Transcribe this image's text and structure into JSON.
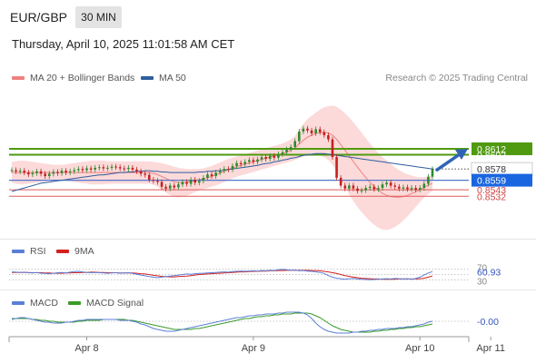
{
  "header": {
    "pair": "EUR/GBP",
    "timeframe": "30 MIN",
    "datetime": "Thursday, April 10, 2025 11:01:58 AM CET"
  },
  "legend": {
    "bollinger": "MA 20 + Bollinger Bands",
    "bollinger_color": "#f08080",
    "ma50": "MA 50",
    "ma50_color": "#2f5d9e",
    "copyright": "Research © 2025 Trading Central"
  },
  "rsi_legend": {
    "rsi": "RSI",
    "rsi_color": "#5b7fd6",
    "ma": "9MA",
    "ma_color": "#d42020"
  },
  "macd_legend": {
    "macd": "MACD",
    "macd_color": "#5b7fd6",
    "signal": "MACD Signal",
    "signal_color": "#3a9a2a"
  },
  "chart_data": {
    "type": "candlestick",
    "x_ticks": [
      "Apr 8",
      "Apr 9",
      "Apr 10",
      "Apr 11"
    ],
    "price_labels": [
      {
        "text": "0.8612",
        "value": 0.8612,
        "style": "green"
      },
      {
        "text": "0.8602",
        "value": 0.8602,
        "style": "green-partial"
      },
      {
        "text": "0.8578",
        "value": 0.8578,
        "style": "white"
      },
      {
        "text": "0.8559",
        "value": 0.8559,
        "style": "blue"
      },
      {
        "text": "0.8543",
        "value": 0.8543,
        "style": "red-partial"
      },
      {
        "text": "0.8532",
        "value": 0.8532,
        "style": "red"
      }
    ],
    "resistance_levels": [
      0.8612,
      0.8602
    ],
    "pivot_level": 0.8559,
    "support_levels": [
      0.8543,
      0.8532
    ],
    "last_price": 0.8578,
    "price_ylim": [
      0.8462,
      0.8716
    ],
    "closes": [
      0.8576,
      0.8574,
      0.8575,
      0.8572,
      0.8569,
      0.8571,
      0.8574,
      0.857,
      0.8566,
      0.857,
      0.8573,
      0.8571,
      0.8575,
      0.8572,
      0.8574,
      0.8576,
      0.8578,
      0.8576,
      0.8579,
      0.8577,
      0.858,
      0.8581,
      0.8579,
      0.858,
      0.8582,
      0.8581,
      0.8579,
      0.8578,
      0.858,
      0.8577,
      0.8574,
      0.857,
      0.8568,
      0.856,
      0.8558,
      0.8556,
      0.8548,
      0.8545,
      0.855,
      0.8547,
      0.8552,
      0.8556,
      0.8553,
      0.856,
      0.8555,
      0.8558,
      0.8563,
      0.8569,
      0.8566,
      0.8572,
      0.8575,
      0.8578,
      0.8577,
      0.8583,
      0.8588,
      0.8586,
      0.859,
      0.8593,
      0.859,
      0.8594,
      0.8598,
      0.8595,
      0.86,
      0.8597,
      0.8603,
      0.8606,
      0.8611,
      0.8615,
      0.8625,
      0.8641,
      0.8646,
      0.8643,
      0.8638,
      0.8645,
      0.864,
      0.8635,
      0.8628,
      0.8598,
      0.8563,
      0.855,
      0.8545,
      0.855,
      0.8545,
      0.8541,
      0.8542,
      0.8546,
      0.8548,
      0.8544,
      0.8546,
      0.8552,
      0.8555,
      0.855,
      0.8548,
      0.8545,
      0.8547,
      0.8544,
      0.8546,
      0.8543,
      0.8546,
      0.8553,
      0.8565,
      0.8578
    ],
    "ma50": [
      0.854,
      0.8542,
      0.8544,
      0.8546,
      0.8548,
      0.855,
      0.8552,
      0.8554,
      0.8555,
      0.8556,
      0.8557,
      0.8558,
      0.8559,
      0.856,
      0.8561,
      0.8562,
      0.8563,
      0.8564,
      0.8565,
      0.8566,
      0.8567,
      0.8568,
      0.8568,
      0.8569,
      0.857,
      0.8571,
      0.8572,
      0.8572,
      0.8573,
      0.8573,
      0.8574,
      0.8574,
      0.8575,
      0.8575,
      0.8574,
      0.8574,
      0.8573,
      0.8573,
      0.8572,
      0.8572,
      0.8572,
      0.8572,
      0.8572,
      0.8572,
      0.8572,
      0.8573,
      0.8573,
      0.8574,
      0.8574,
      0.8575,
      0.8575,
      0.8576,
      0.8577,
      0.8578,
      0.8579,
      0.858,
      0.8581,
      0.8582,
      0.8583,
      0.8584,
      0.8586,
      0.8587,
      0.8588,
      0.859,
      0.8591,
      0.8593,
      0.8594,
      0.8596,
      0.8597,
      0.8599,
      0.8601,
      0.8602,
      0.8603,
      0.8604,
      0.8604,
      0.8604,
      0.8603,
      0.8602,
      0.8601,
      0.86,
      0.8599,
      0.8598,
      0.8597,
      0.8596,
      0.8595,
      0.8594,
      0.8593,
      0.8592,
      0.8591,
      0.859,
      0.8589,
      0.8588,
      0.8587,
      0.8586,
      0.8585,
      0.8584,
      0.8583,
      0.8582,
      0.8581,
      0.858,
      0.8579,
      0.8578
    ],
    "bb_upper": [
      0.859,
      0.8591,
      0.8592,
      0.8592,
      0.8591,
      0.859,
      0.8589,
      0.8588,
      0.8587,
      0.8586,
      0.8585,
      0.8585,
      0.8585,
      0.8586,
      0.8587,
      0.8588,
      0.8589,
      0.859,
      0.8591,
      0.8592,
      0.8592,
      0.8592,
      0.8592,
      0.8591,
      0.8591,
      0.8591,
      0.8591,
      0.8591,
      0.8591,
      0.8591,
      0.8591,
      0.8591,
      0.8591,
      0.8591,
      0.859,
      0.8589,
      0.8588,
      0.8586,
      0.8584,
      0.8582,
      0.858,
      0.8579,
      0.8578,
      0.8578,
      0.8578,
      0.8578,
      0.8579,
      0.8581,
      0.8583,
      0.8586,
      0.8589,
      0.8592,
      0.8595,
      0.8597,
      0.8599,
      0.8601,
      0.8603,
      0.8605,
      0.8607,
      0.8609,
      0.8611,
      0.8613,
      0.8615,
      0.8617,
      0.8619,
      0.8621,
      0.8624,
      0.8628,
      0.8634,
      0.8644,
      0.8654,
      0.8662,
      0.8668,
      0.8673,
      0.8678,
      0.8682,
      0.8684,
      0.8685,
      0.8683,
      0.8678,
      0.8672,
      0.8665,
      0.8657,
      0.8648,
      0.8639,
      0.863,
      0.8621,
      0.8613,
      0.8605,
      0.8598,
      0.8592,
      0.8586,
      0.8581,
      0.8576,
      0.8572,
      0.8569,
      0.8567,
      0.8565,
      0.8564,
      0.8564,
      0.8565,
      0.8567
    ],
    "bb_lower": [
      0.8555,
      0.8553,
      0.8552,
      0.8552,
      0.8553,
      0.8554,
      0.8555,
      0.8556,
      0.8557,
      0.8558,
      0.8559,
      0.8559,
      0.8559,
      0.8558,
      0.8557,
      0.8556,
      0.8555,
      0.8554,
      0.8553,
      0.8552,
      0.8552,
      0.8552,
      0.8552,
      0.8553,
      0.8553,
      0.8553,
      0.8553,
      0.8553,
      0.8553,
      0.8553,
      0.8553,
      0.8553,
      0.8553,
      0.8553,
      0.8551,
      0.8548,
      0.8543,
      0.8538,
      0.8534,
      0.8531,
      0.853,
      0.8531,
      0.8533,
      0.8536,
      0.8539,
      0.8542,
      0.8544,
      0.8546,
      0.8548,
      0.855,
      0.8553,
      0.8556,
      0.8559,
      0.8562,
      0.8565,
      0.8567,
      0.8569,
      0.8571,
      0.8573,
      0.8575,
      0.8577,
      0.8579,
      0.8581,
      0.8583,
      0.8585,
      0.8587,
      0.8589,
      0.8591,
      0.8593,
      0.8596,
      0.8599,
      0.8601,
      0.8602,
      0.8602,
      0.8601,
      0.8598,
      0.8593,
      0.8585,
      0.8573,
      0.856,
      0.8547,
      0.8535,
      0.8524,
      0.8514,
      0.8505,
      0.8497,
      0.849,
      0.8484,
      0.8479,
      0.8476,
      0.8475,
      0.8477,
      0.848,
      0.8485,
      0.8491,
      0.8498,
      0.8506,
      0.8514,
      0.8522,
      0.853,
      0.8536,
      0.8541
    ],
    "rsi": {
      "label": "60.93",
      "value": 60.93,
      "ylim": [
        0,
        100
      ],
      "levels": [
        70,
        50,
        30
      ],
      "values": [
        60,
        59,
        58,
        59,
        57,
        56,
        58,
        55,
        54,
        53,
        55,
        57,
        58,
        56,
        59,
        61,
        62,
        60,
        58,
        57,
        58,
        57,
        56,
        55,
        56,
        57,
        55,
        56,
        57,
        54,
        51,
        48,
        45,
        42,
        40,
        38,
        40,
        42,
        44,
        46,
        48,
        50,
        52,
        51,
        53,
        54,
        55,
        56,
        57,
        58,
        59,
        60,
        59,
        61,
        62,
        63,
        62,
        63,
        64,
        63,
        65,
        64,
        66,
        65,
        68,
        70,
        68,
        66,
        67,
        64,
        65,
        63,
        62,
        60,
        58,
        54,
        46,
        40,
        36,
        34,
        32,
        34,
        35,
        33,
        32,
        31,
        30,
        31,
        32,
        33,
        34,
        33,
        35,
        34,
        33,
        34,
        32,
        35,
        40,
        48,
        56,
        61
      ],
      "ma": [
        58,
        58,
        58,
        58,
        58,
        57,
        57,
        57,
        56,
        56,
        55,
        55,
        55,
        56,
        56,
        57,
        57,
        58,
        58,
        59,
        59,
        58,
        58,
        57,
        57,
        57,
        56,
        56,
        56,
        56,
        55,
        53,
        52,
        50,
        47,
        45,
        43,
        42,
        41,
        41,
        42,
        43,
        44,
        46,
        48,
        50,
        51,
        52,
        53,
        54,
        55,
        56,
        57,
        58,
        59,
        60,
        60,
        61,
        62,
        62,
        63,
        63,
        64,
        64,
        65,
        65,
        66,
        66,
        66,
        66,
        66,
        66,
        65,
        65,
        64,
        62,
        60,
        57,
        54,
        50,
        46,
        43,
        40,
        38,
        36,
        35,
        34,
        33,
        33,
        32,
        32,
        32,
        32,
        33,
        33,
        33,
        33,
        33,
        34,
        36,
        40,
        44
      ]
    },
    "macd": {
      "label": "-0.00",
      "value": -0.0,
      "ylim": [
        -0.0016,
        0.0012
      ],
      "values": [
        0.0002,
        0.0003,
        0.0004,
        0.0004,
        0.0003,
        0.0002,
        0.0001,
        0.0,
        -0.0001,
        -0.0001,
        -0.0002,
        -0.0002,
        -0.0002,
        -0.0001,
        -0.0001,
        0.0,
        0.0001,
        0.0001,
        0.0002,
        0.0002,
        0.0002,
        0.0002,
        0.0002,
        0.0002,
        0.0002,
        0.0002,
        0.0001,
        0.0001,
        0.0001,
        0.0,
        -0.0001,
        -0.0003,
        -0.0004,
        -0.0006,
        -0.0008,
        -0.0009,
        -0.001,
        -0.0011,
        -0.0011,
        -0.0011,
        -0.001,
        -0.0009,
        -0.0008,
        -0.0007,
        -0.0006,
        -0.0005,
        -0.0004,
        -0.0003,
        -0.0002,
        -0.0001,
        0.0,
        0.0001,
        0.0002,
        0.0003,
        0.0004,
        0.0004,
        0.0005,
        0.0006,
        0.0006,
        0.0007,
        0.0007,
        0.0008,
        0.0008,
        0.0008,
        0.0009,
        0.0009,
        0.001,
        0.001,
        0.001,
        0.001,
        0.0009,
        0.0007,
        0.0003,
        -0.0002,
        -0.0006,
        -0.0009,
        -0.0011,
        -0.0012,
        -0.0013,
        -0.0013,
        -0.0013,
        -0.0013,
        -0.0012,
        -0.0012,
        -0.0011,
        -0.0011,
        -0.001,
        -0.001,
        -0.0009,
        -0.0009,
        -0.0008,
        -0.0008,
        -0.0008,
        -0.0007,
        -0.0007,
        -0.0006,
        -0.0006,
        -0.0005,
        -0.0004,
        -0.0003,
        -0.0001,
        0.0
      ],
      "signal": [
        0.0003,
        0.0003,
        0.0003,
        0.0003,
        0.0003,
        0.0002,
        0.0002,
        0.0001,
        0.0001,
        0.0,
        0.0,
        -0.0001,
        -0.0001,
        -0.0001,
        -0.0001,
        -0.0001,
        0.0,
        0.0,
        0.0001,
        0.0001,
        0.0001,
        0.0001,
        0.0002,
        0.0002,
        0.0002,
        0.0002,
        0.0002,
        0.0002,
        0.0001,
        0.0001,
        0.0,
        -0.0001,
        -0.0002,
        -0.0003,
        -0.0004,
        -0.0005,
        -0.0006,
        -0.0007,
        -0.0008,
        -0.0009,
        -0.0009,
        -0.0009,
        -0.0009,
        -0.0009,
        -0.0008,
        -0.0008,
        -0.0007,
        -0.0006,
        -0.0005,
        -0.0004,
        -0.0003,
        -0.0002,
        -0.0001,
        0.0,
        0.0001,
        0.0002,
        0.0003,
        0.0003,
        0.0004,
        0.0005,
        0.0005,
        0.0006,
        0.0006,
        0.0007,
        0.0007,
        0.0008,
        0.0008,
        0.0008,
        0.0009,
        0.0009,
        0.0009,
        0.0009,
        0.0008,
        0.0006,
        0.0004,
        0.0001,
        -0.0002,
        -0.0005,
        -0.0007,
        -0.0009,
        -0.001,
        -0.0011,
        -0.0012,
        -0.0012,
        -0.0012,
        -0.0012,
        -0.0012,
        -0.0011,
        -0.0011,
        -0.001,
        -0.001,
        -0.0009,
        -0.0009,
        -0.0008,
        -0.0008,
        -0.0007,
        -0.0007,
        -0.0006,
        -0.0006,
        -0.0005,
        -0.0004,
        -0.0003
      ]
    }
  }
}
